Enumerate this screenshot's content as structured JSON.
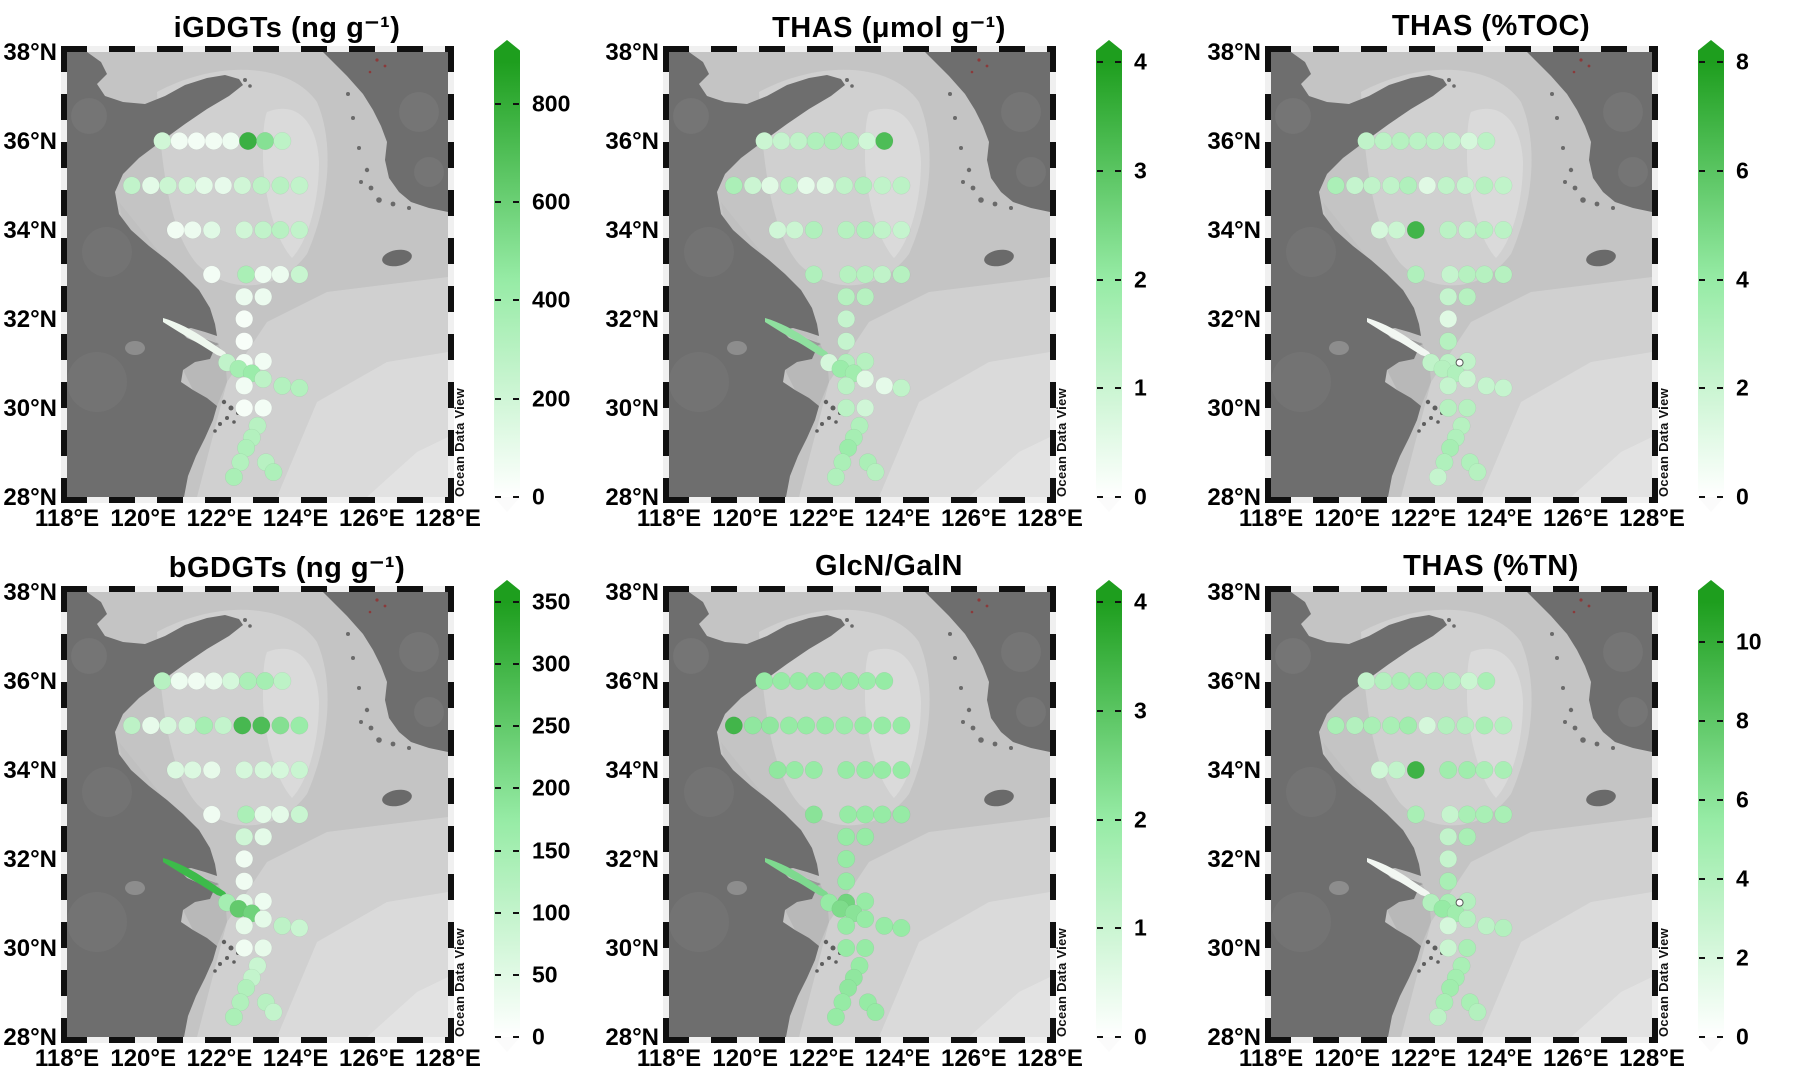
{
  "figure": {
    "credit": "Ocean Data View",
    "lat_ticks": [
      "38°N",
      "36°N",
      "34°N",
      "32°N",
      "30°N",
      "28°N"
    ],
    "lon_ticks": [
      "118°E",
      "120°E",
      "122°E",
      "124°E",
      "126°E",
      "128°E"
    ],
    "colors": {
      "dot_low": "#ffffff",
      "dot_mid": "#96eba5",
      "dot_high": "#1e9e1e",
      "land": "#6e6e6e",
      "sea": "#c4c4c4"
    }
  },
  "chart_data": {
    "type": "scatter",
    "subtype": "map-station-distribution",
    "region": {
      "lon_range": [
        118,
        128
      ],
      "lat_range": [
        28,
        38
      ]
    },
    "stations_lon_lat": [
      [
        120.5,
        36
      ],
      [
        120.95,
        36
      ],
      [
        121.4,
        36
      ],
      [
        121.85,
        36
      ],
      [
        122.3,
        36
      ],
      [
        122.75,
        36
      ],
      [
        123.2,
        36
      ],
      [
        123.65,
        36
      ],
      [
        119.7,
        35
      ],
      [
        120.2,
        35
      ],
      [
        120.65,
        35
      ],
      [
        121.15,
        35
      ],
      [
        121.6,
        35
      ],
      [
        122.1,
        35
      ],
      [
        122.6,
        35
      ],
      [
        123.1,
        35
      ],
      [
        123.6,
        35
      ],
      [
        124.1,
        35
      ],
      [
        120.85,
        34
      ],
      [
        121.3,
        34
      ],
      [
        121.8,
        34
      ],
      [
        122.65,
        34
      ],
      [
        123.15,
        34
      ],
      [
        123.6,
        34
      ],
      [
        124.1,
        34
      ],
      [
        121.8,
        33
      ],
      [
        122.7,
        33
      ],
      [
        123.15,
        33
      ],
      [
        123.6,
        33
      ],
      [
        124.1,
        33
      ],
      [
        122.65,
        32.5
      ],
      [
        123.15,
        32.5
      ],
      [
        122.65,
        32
      ],
      [
        122.65,
        31.5
      ],
      [
        122.2,
        31.02
      ],
      [
        122.65,
        31.02
      ],
      [
        123.15,
        31.05
      ],
      [
        122.5,
        30.88
      ],
      [
        122.85,
        30.78
      ],
      [
        122.65,
        30.5
      ],
      [
        123.15,
        30.65
      ],
      [
        123.65,
        30.5
      ],
      [
        124.1,
        30.45
      ],
      [
        122.65,
        30.0
      ],
      [
        123.15,
        30.0
      ],
      [
        123.0,
        29.6
      ],
      [
        122.85,
        29.33
      ],
      [
        122.7,
        29.1
      ],
      [
        122.55,
        28.78
      ],
      [
        122.38,
        28.45
      ],
      [
        123.22,
        28.78
      ],
      [
        123.42,
        28.56
      ]
    ],
    "panels": [
      {
        "title": "iGDGTs (ng g⁻¹)",
        "vmax": 885,
        "river_color": "#eef7ee",
        "estuary_marker": false,
        "ticks": [
          {
            "value": 800,
            "label": "800"
          },
          {
            "value": 600,
            "label": "600"
          },
          {
            "value": 400,
            "label": "400"
          },
          {
            "value": 200,
            "label": "200"
          },
          {
            "value": 0,
            "label": "0"
          }
        ],
        "values": [
          200,
          60,
          50,
          60,
          70,
          780,
          500,
          280,
          260,
          120,
          220,
          200,
          120,
          100,
          200,
          280,
          300,
          260,
          60,
          80,
          130,
          200,
          260,
          300,
          260,
          50,
          360,
          70,
          80,
          230,
          80,
          80,
          40,
          30,
          260,
          50,
          60,
          380,
          420,
          60,
          280,
          320,
          320,
          40,
          50,
          300,
          320,
          340,
          320,
          360,
          300,
          340
        ]
      },
      {
        "title": "THAS (μmol g⁻¹)",
        "vmax": 4,
        "river_color": "#8fe09f",
        "estuary_marker": false,
        "ticks": [
          {
            "value": 4,
            "label": "4"
          },
          {
            "value": 3,
            "label": "3"
          },
          {
            "value": 2,
            "label": "2"
          },
          {
            "value": 1,
            "label": "1"
          },
          {
            "value": 0,
            "label": "0"
          }
        ],
        "values": [
          1.0,
          1.1,
          1.2,
          1.5,
          1.6,
          1.6,
          0.9,
          3.2,
          1.6,
          1.0,
          0.6,
          1.4,
          0.5,
          0.6,
          1.2,
          1.5,
          1.2,
          1.3,
          0.9,
          1.0,
          1.5,
          1.4,
          1.5,
          1.2,
          1.1,
          1.5,
          1.4,
          1.4,
          1.2,
          1.4,
          1.4,
          1.4,
          1.1,
          1.1,
          0.8,
          1.5,
          1.4,
          1.9,
          1.8,
          1.3,
          0.6,
          0.5,
          1.2,
          1.3,
          0.9,
          1.5,
          1.7,
          1.9,
          1.6,
          1.5,
          1.6,
          1.4
        ]
      },
      {
        "title": "THAS (%TOC)",
        "vmax": 8,
        "river_color": "#f2f7f2",
        "estuary_marker": true,
        "ticks": [
          {
            "value": 8,
            "label": "8"
          },
          {
            "value": 6,
            "label": "6"
          },
          {
            "value": 4,
            "label": "4"
          },
          {
            "value": 2,
            "label": "2"
          },
          {
            "value": 0,
            "label": "0"
          }
        ],
        "values": [
          2.4,
          2.6,
          2.8,
          2.6,
          2.6,
          2.4,
          1.6,
          2.6,
          3.2,
          2.2,
          2.4,
          2.4,
          3.0,
          1.2,
          2.4,
          2.2,
          2.8,
          2.4,
          1.6,
          2.0,
          6.8,
          2.6,
          2.4,
          2.8,
          2.6,
          3.0,
          2.2,
          2.8,
          2.8,
          2.8,
          2.2,
          2.8,
          1.2,
          2.8,
          2.4,
          2.6,
          2.4,
          2.8,
          3.0,
          2.2,
          2.0,
          2.2,
          2.2,
          2.8,
          2.8,
          2.8,
          3.0,
          3.4,
          3.0,
          2.2,
          3.0,
          2.8
        ]
      },
      {
        "title": "bGDGTs (ng g⁻¹)",
        "vmax": 350,
        "river_color": "#3dbb4a",
        "estuary_marker": false,
        "ticks": [
          {
            "value": 350,
            "label": "350"
          },
          {
            "value": 300,
            "label": "300"
          },
          {
            "value": 250,
            "label": "250"
          },
          {
            "value": 200,
            "label": "200"
          },
          {
            "value": 150,
            "label": "150"
          },
          {
            "value": 100,
            "label": "100"
          },
          {
            "value": 50,
            "label": "50"
          },
          {
            "value": 0,
            "label": "0"
          }
        ],
        "values": [
          120,
          30,
          25,
          35,
          70,
          140,
          150,
          110,
          110,
          40,
          70,
          80,
          150,
          100,
          290,
          280,
          200,
          170,
          60,
          60,
          40,
          70,
          70,
          70,
          90,
          25,
          140,
          45,
          45,
          90,
          80,
          45,
          25,
          25,
          150,
          45,
          30,
          250,
          230,
          40,
          45,
          110,
          90,
          25,
          40,
          90,
          100,
          130,
          130,
          140,
          120,
          100
        ]
      },
      {
        "title": "GlcN/GalN",
        "vmax": 4,
        "river_color": "#7ed98f",
        "estuary_marker": false,
        "ticks": [
          {
            "value": 4,
            "label": "4"
          },
          {
            "value": 3,
            "label": "3"
          },
          {
            "value": 2,
            "label": "2"
          },
          {
            "value": 1,
            "label": "1"
          },
          {
            "value": 0,
            "label": "0"
          }
        ],
        "values": [
          2.0,
          2.0,
          2.0,
          2.0,
          2.0,
          2.0,
          1.9,
          2.0,
          3.4,
          2.1,
          2.1,
          2.0,
          2.0,
          2.0,
          1.9,
          2.0,
          2.0,
          2.0,
          2.1,
          2.0,
          2.0,
          2.0,
          2.0,
          2.0,
          2.0,
          2.2,
          2.0,
          2.0,
          2.0,
          2.0,
          2.0,
          2.0,
          2.0,
          2.0,
          2.0,
          2.6,
          2.0,
          2.4,
          2.2,
          2.0,
          2.0,
          2.0,
          2.0,
          2.0,
          2.0,
          2.0,
          2.1,
          2.1,
          2.0,
          2.0,
          2.0,
          2.0
        ]
      },
      {
        "title": "THAS (%TN)",
        "vmax": 11,
        "river_color": "#f2f7f2",
        "estuary_marker": true,
        "ticks": [
          {
            "value": 10,
            "label": "10"
          },
          {
            "value": 8,
            "label": "8"
          },
          {
            "value": 6,
            "label": "6"
          },
          {
            "value": 4,
            "label": "4"
          },
          {
            "value": 2,
            "label": "2"
          },
          {
            "value": 0,
            "label": "0"
          }
        ],
        "values": [
          3.2,
          4.0,
          4.5,
          4.5,
          4.5,
          4.0,
          2.8,
          4.5,
          4.5,
          4.0,
          4.5,
          4.5,
          5.0,
          2.2,
          4.0,
          4.0,
          4.5,
          4.0,
          2.5,
          3.2,
          9.5,
          5.0,
          5.0,
          4.5,
          4.5,
          4.5,
          3.0,
          4.5,
          4.5,
          4.5,
          3.2,
          4.5,
          3.0,
          4.5,
          4.0,
          4.5,
          4.0,
          5.5,
          5.0,
          2.2,
          3.8,
          3.5,
          4.0,
          2.8,
          4.5,
          4.5,
          4.8,
          5.0,
          4.5,
          3.5,
          4.5,
          4.0
        ]
      }
    ]
  }
}
